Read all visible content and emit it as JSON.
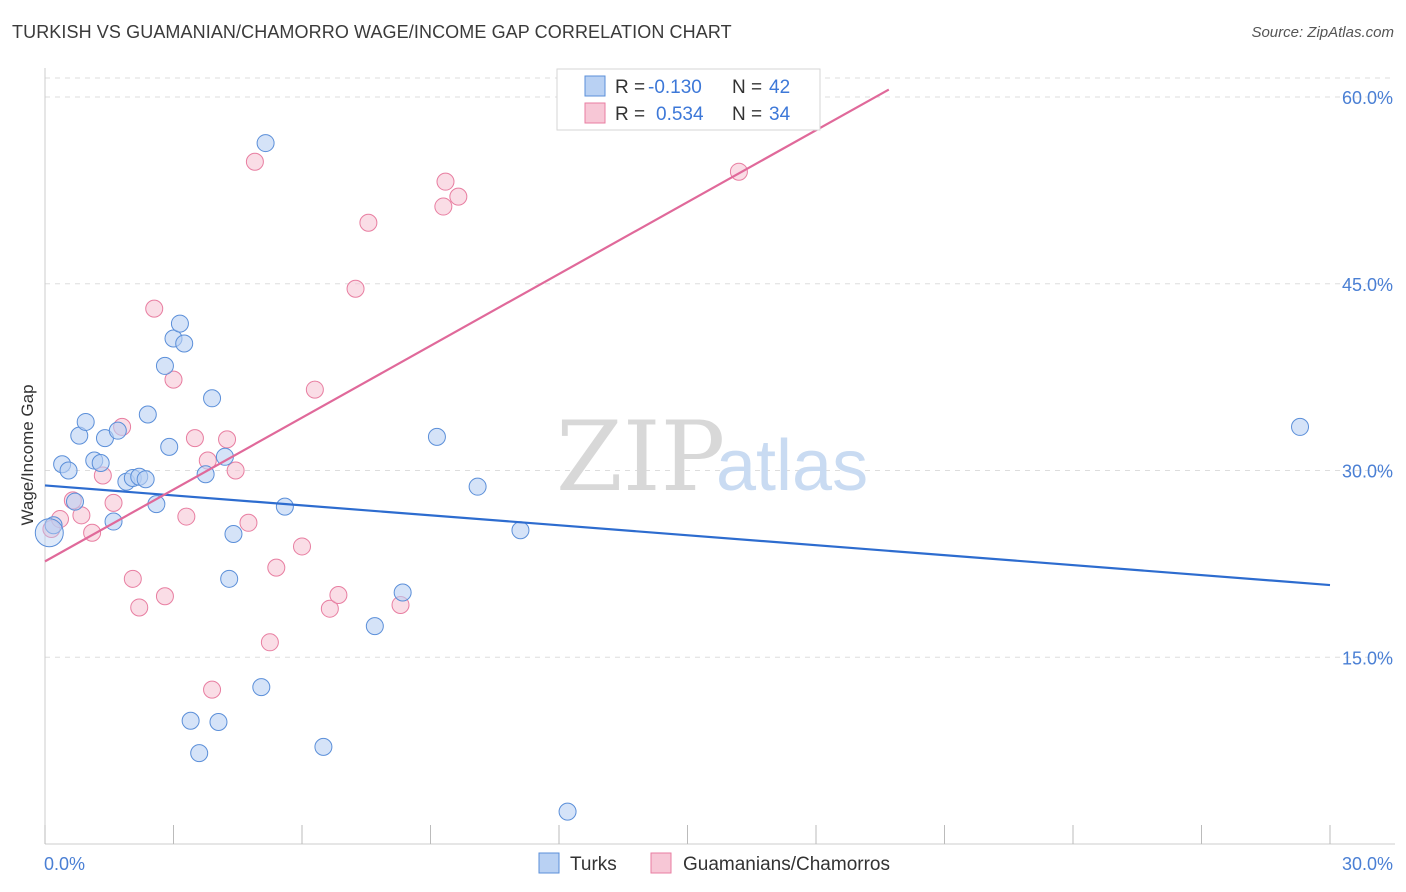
{
  "title": "TURKISH VS GUAMANIAN/CHAMORRO WAGE/INCOME GAP CORRELATION CHART",
  "source": "Source: ZipAtlas.com",
  "watermark": {
    "zip": "ZIP",
    "atlas": "atlas"
  },
  "colors": {
    "turks": "#5b8fd9",
    "turks_fill": "#b9d1f3",
    "guam": "#e87ea1",
    "guam_fill": "#f7c7d6",
    "turks_line": "#2d6ccf",
    "guam_line": "#e0699a",
    "grid": "#dddddd",
    "axis_label": "#4a7fd4"
  },
  "legend": {
    "r_label": "R =",
    "n_label": "N =",
    "rows": [
      {
        "series": "turks",
        "r": "-0.130",
        "n": "42"
      },
      {
        "series": "guam",
        "r": "0.534",
        "n": "34"
      }
    ]
  },
  "bottom_legend": [
    "Turks",
    "Guamanians/Chamorros"
  ],
  "chart_data": {
    "type": "scatter",
    "title": "TURKISH VS GUAMANIAN/CHAMORRO WAGE/INCOME GAP CORRELATION CHART",
    "xlabel": "",
    "ylabel": "Wage/Income Gap",
    "xlim": [
      0,
      30
    ],
    "ylim": [
      0,
      61
    ],
    "x_tick_labels": [
      "0.0%",
      "30.0%"
    ],
    "y_ticks": [
      15,
      30,
      45,
      60
    ],
    "y_tick_labels": [
      "15.0%",
      "30.0%",
      "45.0%",
      "60.0%"
    ],
    "grid": true,
    "series": [
      {
        "name": "Turks",
        "key": "turks",
        "points": [
          [
            0.2,
            25.6
          ],
          [
            0.4,
            30.5
          ],
          [
            0.55,
            30.0
          ],
          [
            0.7,
            27.5
          ],
          [
            0.8,
            32.8
          ],
          [
            0.95,
            33.9
          ],
          [
            1.15,
            30.8
          ],
          [
            1.3,
            30.6
          ],
          [
            1.4,
            32.6
          ],
          [
            1.6,
            25.9
          ],
          [
            1.7,
            33.2
          ],
          [
            1.9,
            29.1
          ],
          [
            2.05,
            29.4
          ],
          [
            2.2,
            29.5
          ],
          [
            2.35,
            29.3
          ],
          [
            2.4,
            34.5
          ],
          [
            2.6,
            27.3
          ],
          [
            2.8,
            38.4
          ],
          [
            2.9,
            31.9
          ],
          [
            3.0,
            40.6
          ],
          [
            3.15,
            41.8
          ],
          [
            3.25,
            40.2
          ],
          [
            3.4,
            9.9
          ],
          [
            3.6,
            7.3
          ],
          [
            3.75,
            29.7
          ],
          [
            3.9,
            35.8
          ],
          [
            4.05,
            9.8
          ],
          [
            4.2,
            31.1
          ],
          [
            4.3,
            21.3
          ],
          [
            4.4,
            24.9
          ],
          [
            5.05,
            12.6
          ],
          [
            5.15,
            56.3
          ],
          [
            5.6,
            27.1
          ],
          [
            6.5,
            7.8
          ],
          [
            7.7,
            17.5
          ],
          [
            8.35,
            20.2
          ],
          [
            9.15,
            32.7
          ],
          [
            10.1,
            28.7
          ],
          [
            11.1,
            25.2
          ],
          [
            12.2,
            2.6
          ],
          [
            29.3,
            33.5
          ],
          [
            0.1,
            25.0
          ]
        ],
        "trend": {
          "x": [
            0,
            30
          ],
          "y": [
            28.8,
            20.8
          ]
        }
      },
      {
        "name": "Guamanians/Chamorros",
        "key": "guam",
        "points": [
          [
            0.15,
            25.3
          ],
          [
            0.35,
            26.1
          ],
          [
            0.65,
            27.6
          ],
          [
            0.85,
            26.4
          ],
          [
            1.1,
            25.0
          ],
          [
            1.35,
            29.6
          ],
          [
            1.6,
            27.4
          ],
          [
            1.8,
            33.5
          ],
          [
            2.05,
            21.3
          ],
          [
            2.2,
            19.0
          ],
          [
            2.55,
            43.0
          ],
          [
            2.8,
            19.9
          ],
          [
            3.0,
            37.3
          ],
          [
            3.3,
            26.3
          ],
          [
            3.5,
            32.6
          ],
          [
            3.8,
            30.8
          ],
          [
            3.9,
            12.4
          ],
          [
            4.25,
            32.5
          ],
          [
            4.45,
            30.0
          ],
          [
            4.75,
            25.8
          ],
          [
            4.9,
            54.8
          ],
          [
            5.25,
            16.2
          ],
          [
            5.4,
            22.2
          ],
          [
            6.0,
            23.9
          ],
          [
            6.3,
            36.5
          ],
          [
            6.65,
            18.9
          ],
          [
            6.85,
            20.0
          ],
          [
            7.25,
            44.6
          ],
          [
            7.55,
            49.9
          ],
          [
            8.3,
            19.2
          ],
          [
            9.3,
            51.2
          ],
          [
            9.35,
            53.2
          ],
          [
            9.65,
            52.0
          ],
          [
            16.2,
            54.0
          ]
        ],
        "trend": {
          "x": [
            0,
            19.7
          ],
          "y": [
            22.7,
            60.6
          ]
        }
      }
    ]
  }
}
